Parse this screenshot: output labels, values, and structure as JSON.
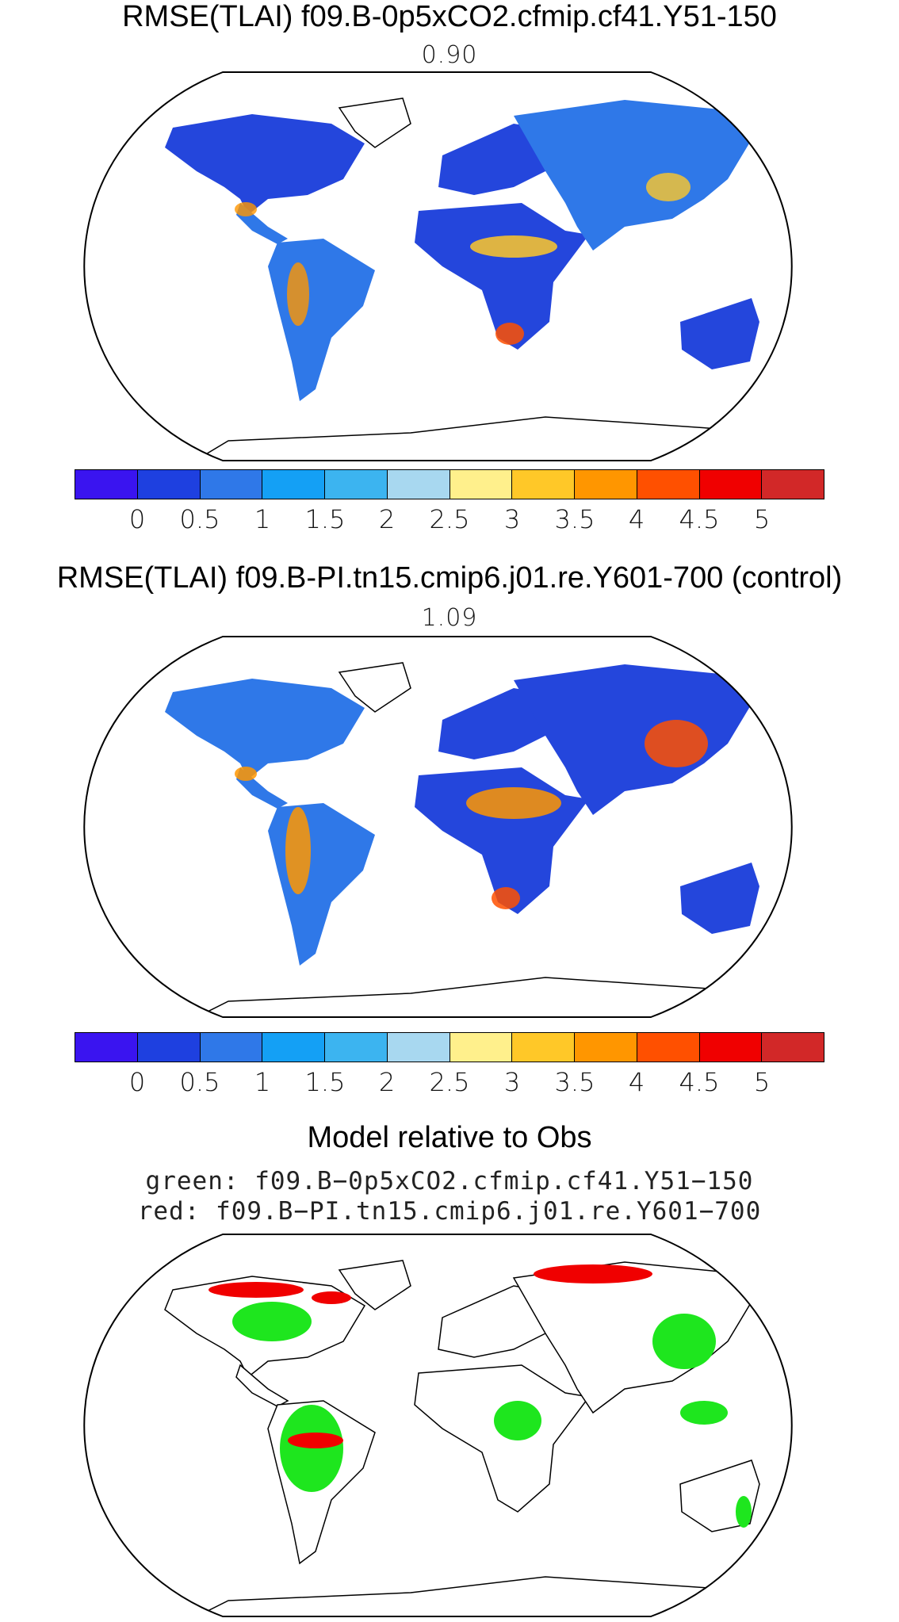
{
  "panels": [
    {
      "title": "RMSE(TLAI) f09.B-0p5xCO2.cfmip.cf41.Y51-150",
      "value": "0.90"
    },
    {
      "title": "RMSE(TLAI) f09.B-PI.tn15.cmip6.j01.re.Y601-700 (control)",
      "value": "1.09"
    }
  ],
  "comparison": {
    "title": "Model relative to Obs",
    "green_label": "green: f09.B−0p5xCO2.cfmip.cf41.Y51−150",
    "red_label": "red: f09.B−PI.tn15.cmip6.j01.re.Y601−700",
    "colors": {
      "green": "#1ee61e",
      "red": "#f00000"
    }
  },
  "colorbar": {
    "colors": [
      "#3a14f0",
      "#1e40e0",
      "#2f78e8",
      "#14a0f5",
      "#3cb4f0",
      "#a8d8f0",
      "#fff08c",
      "#ffc828",
      "#ff9600",
      "#ff5000",
      "#f00000",
      "#d22828"
    ],
    "tick_labels": [
      "0",
      "0.5",
      "1",
      "1.5",
      "2",
      "2.5",
      "3",
      "3.5",
      "4",
      "4.5",
      "5"
    ]
  },
  "map_colors": {
    "ocean": "#ffffff",
    "land_low": "#2446dc",
    "land_mid": "#2f78e8",
    "land_high": "#ff9600",
    "coast": "#000000"
  }
}
